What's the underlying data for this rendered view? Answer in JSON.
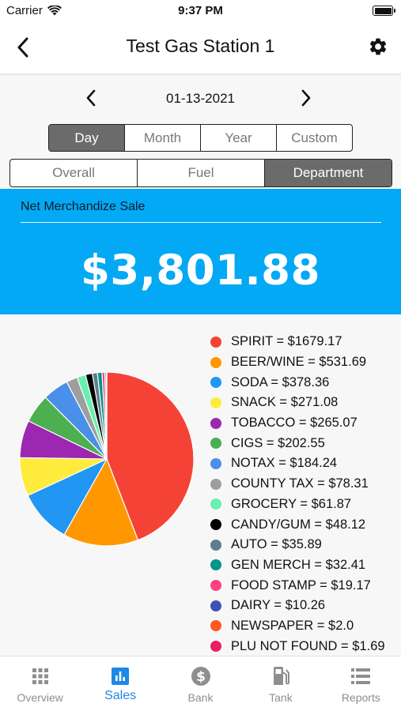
{
  "status_bar": {
    "carrier": "Carrier",
    "time": "9:37 PM"
  },
  "header": {
    "title": "Test Gas Station 1"
  },
  "date_nav": {
    "date": "01-13-2021"
  },
  "period_tabs": [
    {
      "label": "Day",
      "active": true
    },
    {
      "label": "Month",
      "active": false
    },
    {
      "label": "Year",
      "active": false
    },
    {
      "label": "Custom",
      "active": false
    }
  ],
  "view_tabs": [
    {
      "label": "Overall",
      "active": false
    },
    {
      "label": "Fuel",
      "active": false
    },
    {
      "label": "Department",
      "active": true
    }
  ],
  "summary": {
    "label": "Net Merchandize Sale",
    "value": "$3,801.88",
    "color": "#03a9f4"
  },
  "chart_data": {
    "type": "pie",
    "slices": [
      {
        "name": "SPIRIT",
        "value": 1679.17,
        "color": "#f44336",
        "legend": "SPIRIT  = $1679.17"
      },
      {
        "name": "BEER/WINE",
        "value": 531.69,
        "color": "#ff9800",
        "legend": "BEER/WINE  = $531.69"
      },
      {
        "name": "SODA",
        "value": 378.36,
        "color": "#2196f3",
        "legend": "SODA  = $378.36"
      },
      {
        "name": "SNACK",
        "value": 271.08,
        "color": "#ffeb3b",
        "legend": "SNACK  = $271.08"
      },
      {
        "name": "TOBACCO",
        "value": 265.07,
        "color": "#9c27b0",
        "legend": "TOBACCO  = $265.07"
      },
      {
        "name": "CIGS",
        "value": 202.55,
        "color": "#4caf50",
        "legend": "CIGS  = $202.55"
      },
      {
        "name": "NOTAX",
        "value": 184.24,
        "color": "#4a8fe8",
        "legend": "NOTAX  = $184.24"
      },
      {
        "name": "COUNTY TAX",
        "value": 78.31,
        "color": "#9e9e9e",
        "legend": "COUNTY TAX  = $78.31"
      },
      {
        "name": "GROCERY",
        "value": 61.87,
        "color": "#69f0ae",
        "legend": "GROCERY  = $61.87"
      },
      {
        "name": "CANDY/GUM",
        "value": 48.12,
        "color": "#000000",
        "legend": "CANDY/GUM  = $48.12"
      },
      {
        "name": "AUTO",
        "value": 35.89,
        "color": "#607d8b",
        "legend": "AUTO  = $35.89"
      },
      {
        "name": "GEN MERCH",
        "value": 32.41,
        "color": "#009688",
        "legend": "GEN MERCH  = $32.41"
      },
      {
        "name": "FOOD STAMP",
        "value": 19.17,
        "color": "#ff4081",
        "legend": "FOOD STAMP  = $19.17"
      },
      {
        "name": "DAIRY",
        "value": 10.26,
        "color": "#3f51b5",
        "legend": "DAIRY  = $10.26"
      },
      {
        "name": "NEWSPAPER",
        "value": 2.0,
        "color": "#ff5722",
        "legend": "NEWSPAPER  = $2.0"
      },
      {
        "name": "PLU NOT FOUND",
        "value": 1.69,
        "color": "#e91e63",
        "legend": "PLU NOT FOUND  = $1.69"
      }
    ]
  },
  "bottom_tabs": [
    {
      "label": "Overview",
      "icon": "grid-icon",
      "active": false
    },
    {
      "label": "Sales",
      "icon": "bar-chart-icon",
      "active": true
    },
    {
      "label": "Bank",
      "icon": "dollar-coin-icon",
      "active": false
    },
    {
      "label": "Tank",
      "icon": "fuel-pump-icon",
      "active": false
    },
    {
      "label": "Reports",
      "icon": "list-icon",
      "active": false
    }
  ]
}
